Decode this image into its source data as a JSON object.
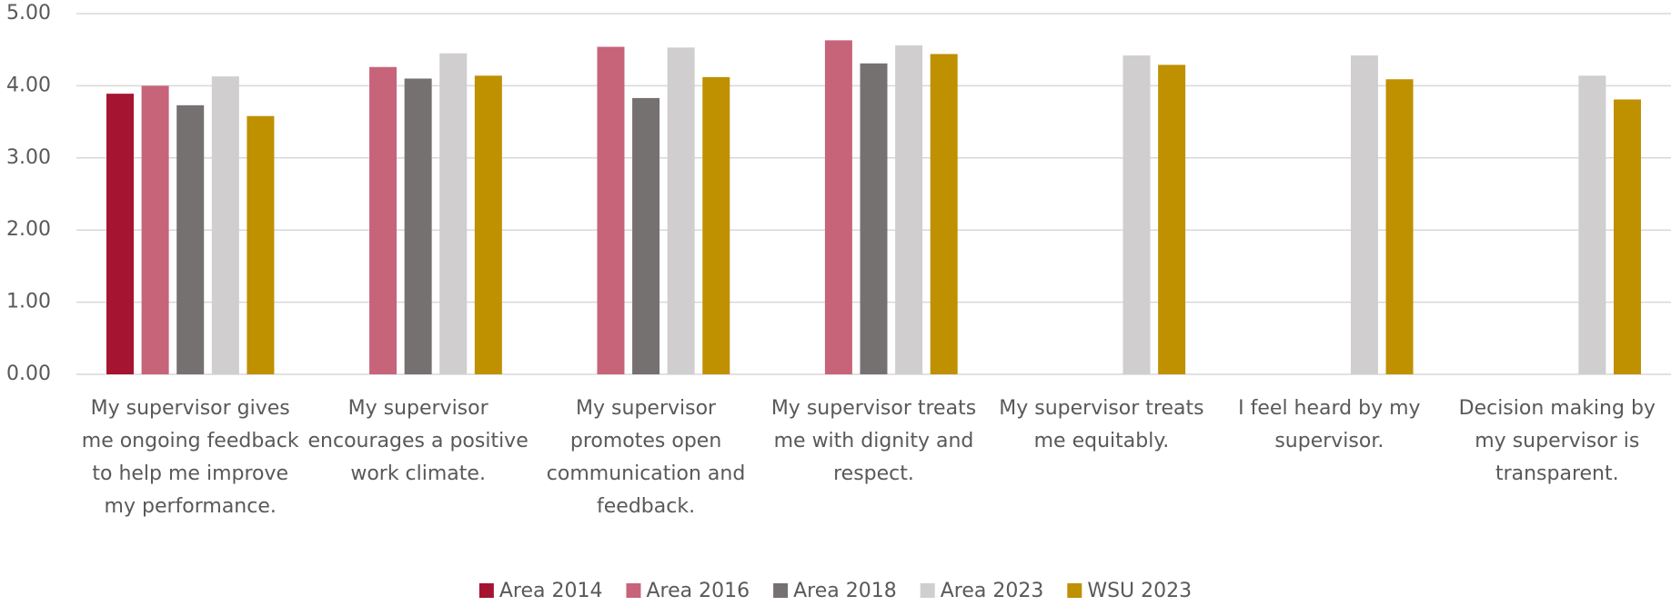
{
  "chart_data": {
    "type": "bar",
    "categories": [
      "My supervisor gives me ongoing feedback to help me improve my performance.",
      "My supervisor encourages a positive work climate.",
      "My supervisor promotes open communication and feedback.",
      "My supervisor treats me with dignity and respect.",
      "My supervisor treats me equitably.",
      "I feel heard by my supervisor.",
      "Decision making by my supervisor is transparent."
    ],
    "series": [
      {
        "name": "Area 2014",
        "color": "#a51431",
        "values": [
          3.89,
          null,
          null,
          null,
          null,
          null,
          null
        ]
      },
      {
        "name": "Area 2016",
        "color": "#c7647a",
        "values": [
          4.0,
          4.26,
          4.54,
          4.63,
          null,
          null,
          null
        ]
      },
      {
        "name": "Area 2018",
        "color": "#767171",
        "values": [
          3.73,
          4.1,
          3.83,
          4.31,
          null,
          null,
          null
        ]
      },
      {
        "name": "Area 2023",
        "color": "#d0cece",
        "values": [
          4.13,
          4.45,
          4.53,
          4.56,
          4.42,
          4.42,
          4.14
        ]
      },
      {
        "name": "WSU 2023",
        "color": "#bf9000",
        "values": [
          3.58,
          4.14,
          4.12,
          4.44,
          4.29,
          4.09,
          3.81
        ]
      }
    ],
    "ylim": [
      0,
      5
    ],
    "yticks": [
      {
        "value": 0,
        "label": "0.00"
      },
      {
        "value": 1,
        "label": "1.00"
      },
      {
        "value": 2,
        "label": "2.00"
      },
      {
        "value": 3,
        "label": "3.00"
      },
      {
        "value": 4,
        "label": "4.00"
      },
      {
        "value": 5,
        "label": "5.00"
      }
    ],
    "grid": true,
    "legend": "bottom"
  }
}
